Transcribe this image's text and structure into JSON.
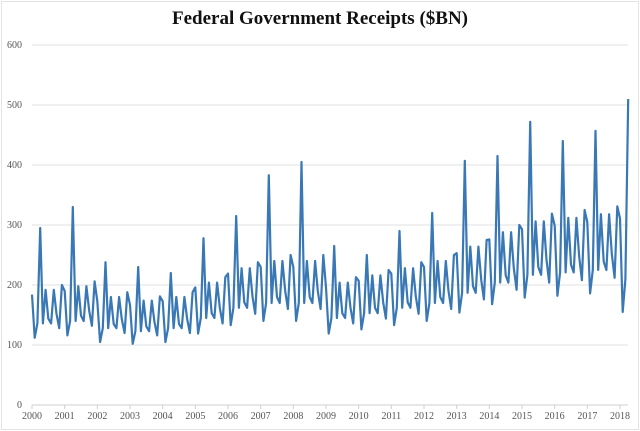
{
  "chart_data": {
    "type": "line",
    "title": "Federal Government Receipts ($BN)",
    "xlabel": "",
    "ylabel": "",
    "ylim": [
      0,
      600
    ],
    "yticks": [
      0,
      100,
      200,
      300,
      400,
      500,
      600
    ],
    "xticks": [
      "2000",
      "2001",
      "2002",
      "2003",
      "2004",
      "2005",
      "2006",
      "2007",
      "2008",
      "2009",
      "2010",
      "2011",
      "2012",
      "2013",
      "2014",
      "2015",
      "2016",
      "2017",
      "2018"
    ],
    "x_start": "2000-01",
    "frequency": "monthly",
    "grid": "horizontal",
    "line_color": "#3a78b5",
    "series": [
      {
        "name": "Federal Government Receipts",
        "values": [
          184,
          112,
          136,
          295,
          136,
          192,
          144,
          136,
          192,
          152,
          128,
          200,
          190,
          116,
          140,
          330,
          140,
          198,
          149,
          140,
          198,
          157,
          132,
          206,
          173,
          105,
          128,
          238,
          128,
          180,
          135,
          128,
          180,
          143,
          120,
          188,
          167,
          102,
          123,
          230,
          123,
          174,
          131,
          123,
          174,
          138,
          116,
          181,
          173,
          105,
          128,
          220,
          128,
          180,
          135,
          128,
          180,
          143,
          120,
          188,
          196,
          119,
          145,
          278,
          145,
          204,
          153,
          145,
          204,
          162,
          136,
          213,
          219,
          133,
          162,
          315,
          162,
          228,
          171,
          162,
          228,
          181,
          152,
          238,
          230,
          140,
          170,
          383,
          170,
          240,
          180,
          170,
          240,
          190,
          160,
          250,
          230,
          140,
          170,
          405,
          170,
          240,
          180,
          170,
          240,
          190,
          160,
          250,
          196,
          119,
          145,
          265,
          145,
          204,
          153,
          145,
          204,
          162,
          136,
          213,
          207,
          126,
          153,
          250,
          153,
          216,
          162,
          153,
          216,
          171,
          144,
          225,
          219,
          133,
          162,
          290,
          162,
          228,
          171,
          162,
          228,
          181,
          152,
          238,
          230,
          140,
          170,
          320,
          170,
          240,
          180,
          170,
          240,
          190,
          160,
          250,
          253,
          154,
          187,
          407,
          187,
          264,
          198,
          187,
          264,
          209,
          176,
          275,
          276,
          168,
          204,
          415,
          204,
          288,
          216,
          204,
          288,
          228,
          192,
          300,
          293,
          179,
          217,
          472,
          217,
          306,
          230,
          217,
          306,
          242,
          204,
          319,
          299,
          182,
          221,
          440,
          221,
          312,
          234,
          221,
          312,
          247,
          208,
          325,
          305,
          186,
          225,
          457,
          225,
          318,
          239,
          225,
          318,
          252,
          212,
          331,
          311,
          155,
          210,
          510
        ]
      }
    ]
  }
}
